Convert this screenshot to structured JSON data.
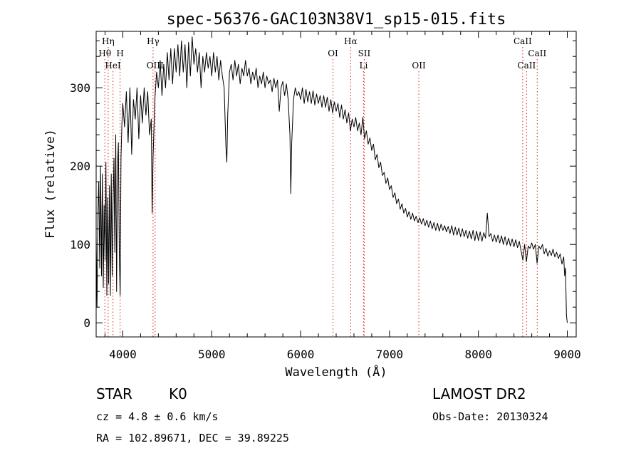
{
  "chart_data": {
    "type": "line",
    "title": "spec-56376-GAC103N38V1_sp15-015.fits",
    "xlabel": "Wavelength (Å)",
    "ylabel": "Flux (relative)",
    "xlim": [
      3700,
      9100
    ],
    "ylim": [
      -18,
      372
    ],
    "x_ticks": [
      4000,
      5000,
      6000,
      7000,
      8000,
      9000
    ],
    "y_ticks": [
      0,
      100,
      200,
      300
    ],
    "grid": false,
    "line_color": "#000000",
    "marker_color": "#e0403a",
    "spectral_lines": [
      {
        "name": "Hη",
        "wavelength": 3835,
        "row": 1
      },
      {
        "name": "Hθ",
        "wavelength": 3798,
        "row": 2
      },
      {
        "name": "H",
        "wavelength": 3969,
        "row": 2
      },
      {
        "name": "HeI",
        "wavelength": 3889,
        "row": 3
      },
      {
        "name": "Hγ",
        "wavelength": 4340,
        "row": 1
      },
      {
        "name": "OIII",
        "wavelength": 4363,
        "row": 3
      },
      {
        "name": "Hα",
        "wavelength": 6563,
        "row": 1
      },
      {
        "name": "OI",
        "wavelength": 6364,
        "row": 2
      },
      {
        "name": "SII",
        "wavelength": 6716,
        "row": 2
      },
      {
        "name": "Li",
        "wavelength": 6708,
        "row": 3
      },
      {
        "name": "OII",
        "wavelength": 7330,
        "row": 3
      },
      {
        "name": "CaII",
        "wavelength": 8498,
        "row": 1
      },
      {
        "name": "CaII",
        "wavelength": 8662,
        "row": 2
      },
      {
        "name": "CaII",
        "wavelength": 8542,
        "row": 3
      }
    ],
    "spectrum": [
      [
        3700,
        110
      ],
      [
        3710,
        20
      ],
      [
        3720,
        140
      ],
      [
        3730,
        180
      ],
      [
        3740,
        70
      ],
      [
        3750,
        200
      ],
      [
        3760,
        60
      ],
      [
        3770,
        190
      ],
      [
        3780,
        45
      ],
      [
        3790,
        150
      ],
      [
        3800,
        80
      ],
      [
        3810,
        205
      ],
      [
        3820,
        35
      ],
      [
        3830,
        160
      ],
      [
        3840,
        50
      ],
      [
        3850,
        175
      ],
      [
        3860,
        35
      ],
      [
        3870,
        190
      ],
      [
        3880,
        60
      ],
      [
        3890,
        150
      ],
      [
        3900,
        210
      ],
      [
        3910,
        90
      ],
      [
        3920,
        240
      ],
      [
        3930,
        40
      ],
      [
        3940,
        200
      ],
      [
        3950,
        230
      ],
      [
        3960,
        90
      ],
      [
        3970,
        35
      ],
      [
        3980,
        210
      ],
      [
        3990,
        255
      ],
      [
        4000,
        280
      ],
      [
        4020,
        250
      ],
      [
        4040,
        295
      ],
      [
        4060,
        230
      ],
      [
        4080,
        300
      ],
      [
        4100,
        215
      ],
      [
        4120,
        285
      ],
      [
        4140,
        260
      ],
      [
        4160,
        300
      ],
      [
        4180,
        235
      ],
      [
        4200,
        290
      ],
      [
        4220,
        255
      ],
      [
        4240,
        300
      ],
      [
        4260,
        265
      ],
      [
        4280,
        295
      ],
      [
        4300,
        240
      ],
      [
        4320,
        260
      ],
      [
        4330,
        140
      ],
      [
        4340,
        210
      ],
      [
        4360,
        285
      ],
      [
        4380,
        320
      ],
      [
        4400,
        300
      ],
      [
        4420,
        335
      ],
      [
        4440,
        290
      ],
      [
        4460,
        330
      ],
      [
        4480,
        300
      ],
      [
        4500,
        345
      ],
      [
        4520,
        310
      ],
      [
        4540,
        350
      ],
      [
        4560,
        305
      ],
      [
        4580,
        350
      ],
      [
        4600,
        320
      ],
      [
        4620,
        355
      ],
      [
        4640,
        315
      ],
      [
        4660,
        360
      ],
      [
        4680,
        320
      ],
      [
        4700,
        355
      ],
      [
        4720,
        300
      ],
      [
        4740,
        358
      ],
      [
        4760,
        315
      ],
      [
        4780,
        365
      ],
      [
        4800,
        330
      ],
      [
        4820,
        350
      ],
      [
        4840,
        320
      ],
      [
        4860,
        345
      ],
      [
        4880,
        300
      ],
      [
        4900,
        340
      ],
      [
        4920,
        320
      ],
      [
        4940,
        345
      ],
      [
        4960,
        325
      ],
      [
        4980,
        340
      ],
      [
        5000,
        315
      ],
      [
        5020,
        345
      ],
      [
        5040,
        320
      ],
      [
        5060,
        340
      ],
      [
        5080,
        310
      ],
      [
        5100,
        335
      ],
      [
        5120,
        315
      ],
      [
        5140,
        300
      ],
      [
        5160,
        225
      ],
      [
        5170,
        205
      ],
      [
        5180,
        265
      ],
      [
        5200,
        320
      ],
      [
        5220,
        330
      ],
      [
        5240,
        310
      ],
      [
        5260,
        335
      ],
      [
        5280,
        315
      ],
      [
        5300,
        330
      ],
      [
        5320,
        305
      ],
      [
        5340,
        325
      ],
      [
        5360,
        315
      ],
      [
        5380,
        335
      ],
      [
        5400,
        315
      ],
      [
        5420,
        325
      ],
      [
        5440,
        305
      ],
      [
        5460,
        320
      ],
      [
        5480,
        310
      ],
      [
        5500,
        325
      ],
      [
        5520,
        300
      ],
      [
        5540,
        315
      ],
      [
        5560,
        305
      ],
      [
        5580,
        320
      ],
      [
        5600,
        300
      ],
      [
        5620,
        315
      ],
      [
        5640,
        305
      ],
      [
        5660,
        310
      ],
      [
        5680,
        295
      ],
      [
        5700,
        312
      ],
      [
        5720,
        300
      ],
      [
        5740,
        310
      ],
      [
        5760,
        270
      ],
      [
        5780,
        300
      ],
      [
        5800,
        308
      ],
      [
        5820,
        290
      ],
      [
        5840,
        305
      ],
      [
        5860,
        285
      ],
      [
        5880,
        240
      ],
      [
        5890,
        165
      ],
      [
        5900,
        230
      ],
      [
        5920,
        285
      ],
      [
        5940,
        300
      ],
      [
        5960,
        290
      ],
      [
        5980,
        295
      ],
      [
        6000,
        285
      ],
      [
        6020,
        300
      ],
      [
        6040,
        280
      ],
      [
        6060,
        298
      ],
      [
        6080,
        282
      ],
      [
        6100,
        295
      ],
      [
        6120,
        280
      ],
      [
        6140,
        296
      ],
      [
        6160,
        278
      ],
      [
        6180,
        292
      ],
      [
        6200,
        280
      ],
      [
        6220,
        290
      ],
      [
        6240,
        275
      ],
      [
        6260,
        290
      ],
      [
        6280,
        275
      ],
      [
        6300,
        288
      ],
      [
        6320,
        270
      ],
      [
        6340,
        285
      ],
      [
        6360,
        268
      ],
      [
        6380,
        282
      ],
      [
        6400,
        270
      ],
      [
        6420,
        280
      ],
      [
        6440,
        262
      ],
      [
        6460,
        278
      ],
      [
        6480,
        260
      ],
      [
        6500,
        272
      ],
      [
        6520,
        255
      ],
      [
        6540,
        268
      ],
      [
        6560,
        245
      ],
      [
        6580,
        260
      ],
      [
        6600,
        250
      ],
      [
        6620,
        262
      ],
      [
        6640,
        245
      ],
      [
        6660,
        255
      ],
      [
        6680,
        240
      ],
      [
        6700,
        262
      ],
      [
        6720,
        235
      ],
      [
        6740,
        245
      ],
      [
        6760,
        228
      ],
      [
        6780,
        236
      ],
      [
        6800,
        220
      ],
      [
        6820,
        228
      ],
      [
        6840,
        208
      ],
      [
        6860,
        215
      ],
      [
        6880,
        198
      ],
      [
        6900,
        205
      ],
      [
        6920,
        188
      ],
      [
        6940,
        192
      ],
      [
        6960,
        178
      ],
      [
        6980,
        185
      ],
      [
        7000,
        170
      ],
      [
        7020,
        175
      ],
      [
        7040,
        160
      ],
      [
        7060,
        166
      ],
      [
        7080,
        152
      ],
      [
        7100,
        158
      ],
      [
        7120,
        145
      ],
      [
        7140,
        152
      ],
      [
        7160,
        140
      ],
      [
        7180,
        146
      ],
      [
        7200,
        135
      ],
      [
        7220,
        142
      ],
      [
        7240,
        132
      ],
      [
        7260,
        140
      ],
      [
        7280,
        130
      ],
      [
        7300,
        136
      ],
      [
        7320,
        128
      ],
      [
        7340,
        134
      ],
      [
        7360,
        126
      ],
      [
        7380,
        133
      ],
      [
        7400,
        124
      ],
      [
        7420,
        131
      ],
      [
        7440,
        122
      ],
      [
        7460,
        130
      ],
      [
        7480,
        120
      ],
      [
        7500,
        128
      ],
      [
        7520,
        118
      ],
      [
        7540,
        127
      ],
      [
        7560,
        117
      ],
      [
        7580,
        126
      ],
      [
        7600,
        118
      ],
      [
        7620,
        124
      ],
      [
        7640,
        116
      ],
      [
        7660,
        123
      ],
      [
        7680,
        114
      ],
      [
        7700,
        124
      ],
      [
        7720,
        112
      ],
      [
        7740,
        122
      ],
      [
        7760,
        112
      ],
      [
        7780,
        121
      ],
      [
        7800,
        110
      ],
      [
        7820,
        120
      ],
      [
        7840,
        110
      ],
      [
        7860,
        118
      ],
      [
        7880,
        108
      ],
      [
        7900,
        117
      ],
      [
        7920,
        107
      ],
      [
        7940,
        118
      ],
      [
        7960,
        105
      ],
      [
        7980,
        117
      ],
      [
        8000,
        105
      ],
      [
        8020,
        116
      ],
      [
        8040,
        104
      ],
      [
        8060,
        115
      ],
      [
        8080,
        108
      ],
      [
        8100,
        140
      ],
      [
        8120,
        110
      ],
      [
        8140,
        114
      ],
      [
        8160,
        104
      ],
      [
        8180,
        112
      ],
      [
        8200,
        103
      ],
      [
        8220,
        112
      ],
      [
        8240,
        102
      ],
      [
        8260,
        111
      ],
      [
        8280,
        100
      ],
      [
        8300,
        110
      ],
      [
        8320,
        99
      ],
      [
        8340,
        108
      ],
      [
        8360,
        98
      ],
      [
        8380,
        107
      ],
      [
        8400,
        97
      ],
      [
        8420,
        106
      ],
      [
        8440,
        96
      ],
      [
        8460,
        104
      ],
      [
        8480,
        92
      ],
      [
        8500,
        80
      ],
      [
        8520,
        100
      ],
      [
        8540,
        78
      ],
      [
        8560,
        98
      ],
      [
        8580,
        95
      ],
      [
        8600,
        102
      ],
      [
        8620,
        94
      ],
      [
        8640,
        100
      ],
      [
        8660,
        76
      ],
      [
        8680,
        98
      ],
      [
        8700,
        94
      ],
      [
        8720,
        100
      ],
      [
        8740,
        88
      ],
      [
        8760,
        95
      ],
      [
        8780,
        85
      ],
      [
        8800,
        92
      ],
      [
        8820,
        86
      ],
      [
        8840,
        94
      ],
      [
        8860,
        84
      ],
      [
        8880,
        90
      ],
      [
        8900,
        82
      ],
      [
        8920,
        88
      ],
      [
        8940,
        75
      ],
      [
        8960,
        84
      ],
      [
        8970,
        60
      ],
      [
        8980,
        70
      ],
      [
        8990,
        10
      ],
      [
        9000,
        0
      ]
    ]
  },
  "info": {
    "object_class": "STAR",
    "subclass": "K0",
    "survey": "LAMOST DR2",
    "redshift": "cz = 4.8 ± 0.6 km/s",
    "obs_date": "Obs-Date: 20130324",
    "coords": "RA = 102.89671, DEC =  39.89225"
  }
}
